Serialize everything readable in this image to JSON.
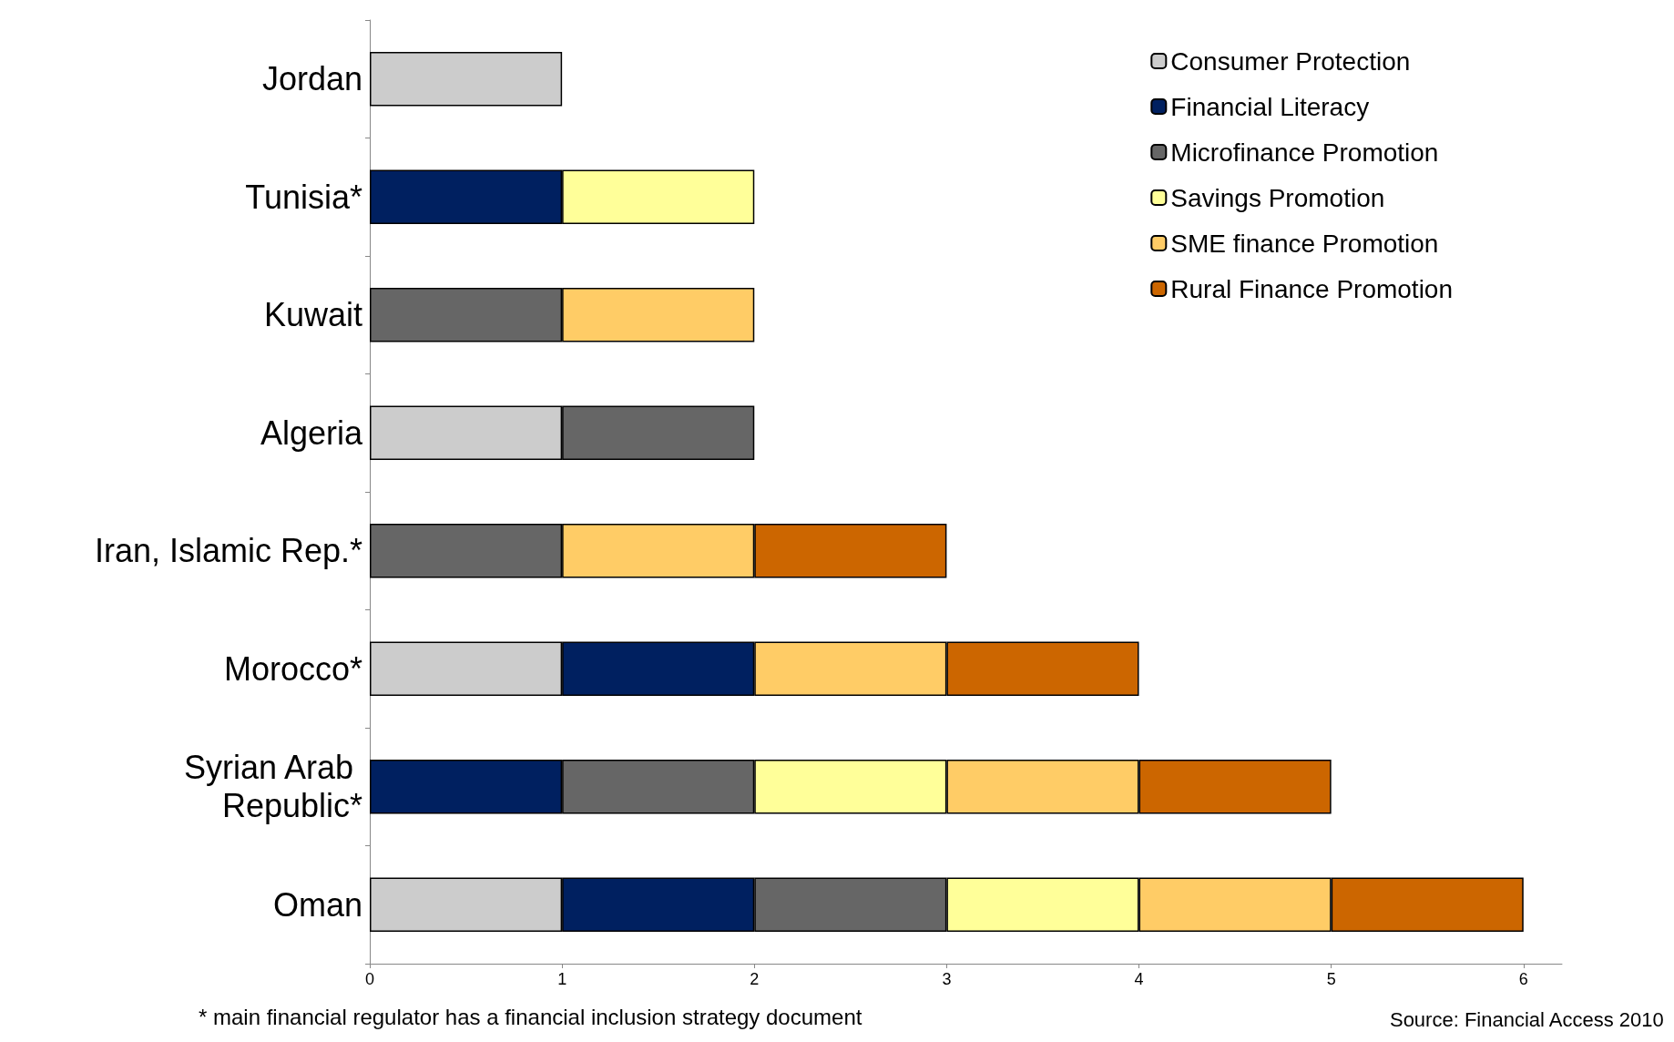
{
  "chart_data": {
    "type": "bar",
    "orientation": "horizontal",
    "stacked": true,
    "categories": [
      "Jordan",
      "Tunisia*",
      "Kuwait",
      "Algeria",
      "Iran, Islamic Rep.*",
      "Morocco*",
      "Syrian Arab Republic*",
      "Oman"
    ],
    "series": [
      {
        "name": "Consumer Protection",
        "color": "#cccccc",
        "values": [
          1,
          null,
          null,
          1,
          null,
          1,
          null,
          1
        ]
      },
      {
        "name": "Financial Literacy",
        "color": "#002060",
        "values": [
          null,
          1,
          null,
          null,
          null,
          1,
          1,
          1
        ]
      },
      {
        "name": "Microfinance Promotion",
        "color": "#666666",
        "values": [
          null,
          null,
          1,
          1,
          1,
          null,
          1,
          1
        ]
      },
      {
        "name": "Savings Promotion",
        "color": "#ffff99",
        "values": [
          null,
          1,
          null,
          null,
          null,
          null,
          1,
          1
        ]
      },
      {
        "name": "SME finance Promotion",
        "color": "#ffcc66",
        "values": [
          null,
          null,
          1,
          null,
          1,
          1,
          1,
          1
        ]
      },
      {
        "name": "Rural Finance Promotion",
        "color": "#cc6600",
        "values": [
          null,
          null,
          null,
          null,
          1,
          1,
          1,
          1
        ]
      }
    ],
    "xlim": [
      0,
      6.2
    ],
    "xticks": [
      0,
      1,
      2,
      3,
      4,
      5,
      6
    ],
    "grid": false,
    "legend": "top right",
    "annotations": [
      "* main financial regulator has a financial inclusion strategy document",
      "Source: Financial Access 2010"
    ]
  }
}
